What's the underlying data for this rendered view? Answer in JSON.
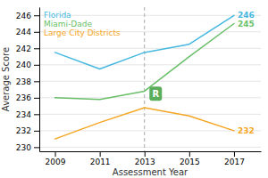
{
  "chart_data": {
    "type": "line",
    "xlabel": "Assessment Year",
    "ylabel": "Average Score",
    "x": [
      2009,
      2011,
      2013,
      2015,
      2017
    ],
    "series": [
      {
        "name": "Florida",
        "color": "#45b8e0",
        "values": [
          241.5,
          239.5,
          241.5,
          242.5,
          246
        ]
      },
      {
        "name": "Miami-Dade",
        "color": "#6abf69",
        "values": [
          236,
          235.8,
          236.8,
          241,
          245
        ]
      },
      {
        "name": "Large City Districts",
        "color": "#f5a623",
        "values": [
          231,
          233,
          234.8,
          233.8,
          232
        ]
      }
    ],
    "xlim": [
      2008.3,
      2018.2
    ],
    "xticks": [
      2009,
      2011,
      2013,
      2015,
      2017
    ],
    "ylim": [
      229.5,
      247.0
    ],
    "yticks": [
      230,
      232,
      234,
      236,
      238,
      240,
      242,
      244,
      246
    ],
    "grid": true,
    "legend": "upper left",
    "vlines": [
      2013
    ],
    "annotations": [
      {
        "text": "246",
        "x": 2017,
        "y": 246,
        "color": "#45b8e0",
        "type": "text"
      },
      {
        "text": "245",
        "x": 2017,
        "y": 245,
        "color": "#6abf69",
        "type": "text"
      },
      {
        "text": "232",
        "x": 2017,
        "y": 232,
        "color": "#f5a623",
        "type": "text"
      },
      {
        "text": "R",
        "x": 2013.5,
        "y": 236.5,
        "color": "#5aad5a",
        "type": "badge"
      }
    ]
  }
}
